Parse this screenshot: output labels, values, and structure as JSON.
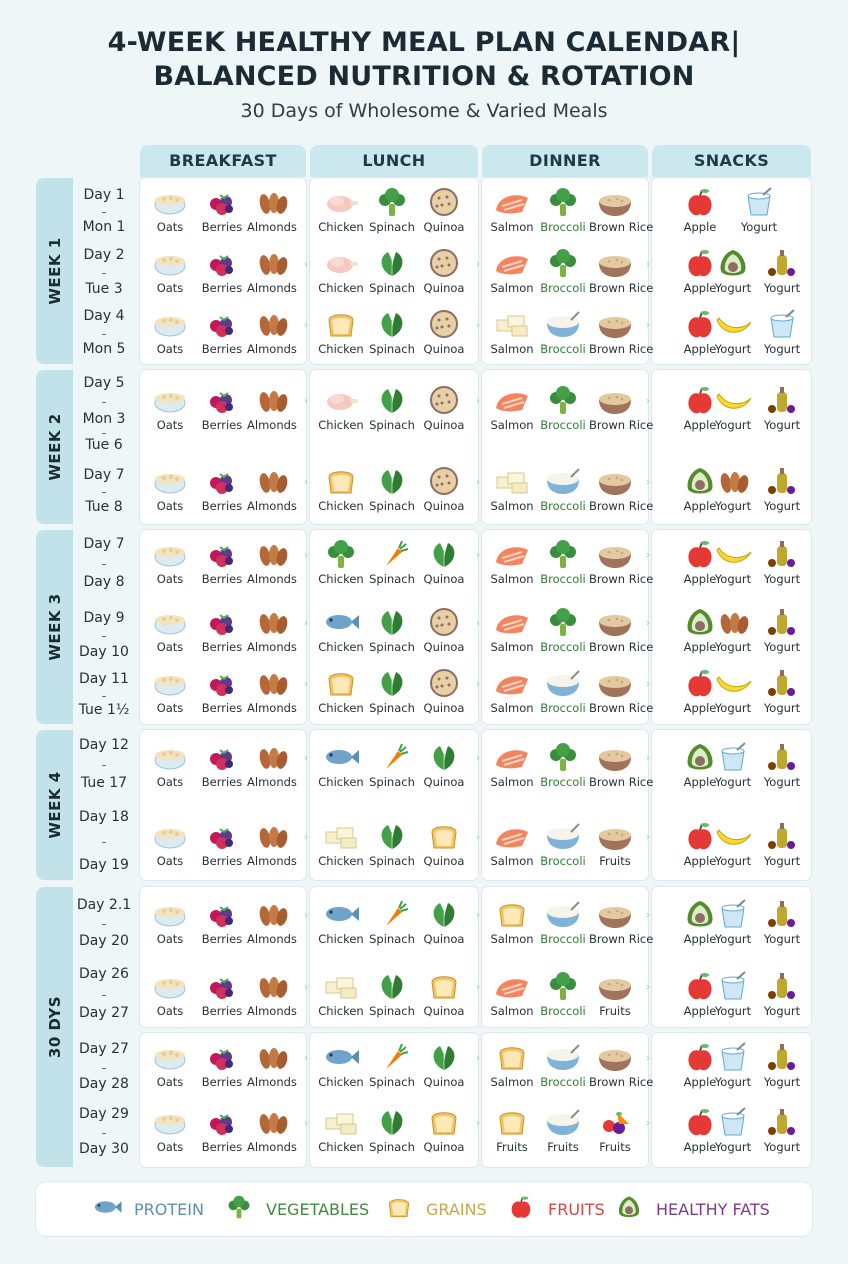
{
  "title_line1": "4-WEEK HEALTHY MEAL PLAN CALENDAR|",
  "title_line2": "BALANCED NUTRITION & ROTATION",
  "subtitle": "30 Days of Wholesome & Varied Meals",
  "columns": [
    "BREAKFAST",
    "LUNCH",
    "DINNER",
    "SNACKS"
  ],
  "weeks": [
    "WEEK 1",
    "WEEK 2",
    "WEEK 3",
    "WEEK 4",
    "30 DYS"
  ],
  "rows": [
    {
      "days": [
        "Day 1",
        "Mon 1"
      ],
      "breakfast": [
        [
          "oats",
          "Oats"
        ],
        [
          "berries",
          "Berries"
        ],
        [
          "almonds",
          "Almonds"
        ]
      ],
      "lunch": [
        [
          "chicken",
          "Chicken"
        ],
        [
          "broccoli",
          "Spinach"
        ],
        [
          "quinoa",
          "Quinoa"
        ]
      ],
      "dinner": [
        [
          "salmon",
          "Salmon"
        ],
        [
          "broccoli",
          "Broccoli"
        ],
        [
          "rice",
          "Brown Rice"
        ]
      ],
      "snacks": [
        [
          "apple",
          "Apple"
        ],
        [
          "yogurt",
          "Yogurt"
        ]
      ]
    },
    {
      "days": [
        "Day 2",
        "Tue 3"
      ],
      "breakfast": [
        [
          "oats",
          "Oats"
        ],
        [
          "berries",
          "Berries"
        ],
        [
          "almonds",
          "Almonds"
        ]
      ],
      "lunch": [
        [
          "chicken",
          "Chicken"
        ],
        [
          "spinach",
          "Spinach"
        ],
        [
          "quinoa",
          "Quinoa"
        ]
      ],
      "dinner": [
        [
          "salmon",
          "Salmon"
        ],
        [
          "broccoli",
          "Broccoli"
        ],
        [
          "rice",
          "Brown Rice"
        ]
      ],
      "snacks": [
        [
          "apple",
          "Apple"
        ],
        [
          "avocado",
          "Yogurt"
        ],
        [
          "oil",
          "Yogurt"
        ]
      ]
    },
    {
      "days": [
        "Day 4",
        "Mon 5"
      ],
      "breakfast": [
        [
          "oats",
          "Oats"
        ],
        [
          "berries",
          "Berries"
        ],
        [
          "almonds",
          "Almonds"
        ]
      ],
      "lunch": [
        [
          "bread",
          "Chicken"
        ],
        [
          "spinach",
          "Spinach"
        ],
        [
          "quinoa",
          "Quinoa"
        ]
      ],
      "dinner": [
        [
          "tofu",
          "Salmon"
        ],
        [
          "ricebowl",
          "Broccoli"
        ],
        [
          "rice",
          "Brown Rice"
        ]
      ],
      "snacks": [
        [
          "apple",
          "Apple"
        ],
        [
          "banana",
          "Yogurt"
        ],
        [
          "yogurt",
          "Yogurt"
        ]
      ]
    },
    {
      "days": [
        "Day 5",
        "Mon 3",
        "Tue 6"
      ],
      "breakfast": [
        [
          "oats",
          "Oats"
        ],
        [
          "berries",
          "Berries"
        ],
        [
          "almonds",
          "Almonds"
        ]
      ],
      "lunch": [
        [
          "chicken",
          "Chicken"
        ],
        [
          "spinach",
          "Spinach"
        ],
        [
          "quinoa",
          "Quinoa"
        ]
      ],
      "dinner": [
        [
          "salmon",
          "Salmon"
        ],
        [
          "broccoli",
          "Broccoli"
        ],
        [
          "rice",
          "Brown Rice"
        ]
      ],
      "snacks": [
        [
          "apple",
          "Apple"
        ],
        [
          "banana",
          "Yogurt"
        ],
        [
          "oil",
          "Yogurt"
        ]
      ]
    },
    {
      "days": [
        "Day 7",
        "Tue 8"
      ],
      "breakfast": [
        [
          "oats",
          "Oats"
        ],
        [
          "berries",
          "Berries"
        ],
        [
          "almonds",
          "Almonds"
        ]
      ],
      "lunch": [
        [
          "bread",
          "Chicken"
        ],
        [
          "spinach",
          "Spinach"
        ],
        [
          "quinoa",
          "Quinoa"
        ]
      ],
      "dinner": [
        [
          "tofu",
          "Salmon"
        ],
        [
          "ricebowl",
          "Broccoli"
        ],
        [
          "rice",
          "Brown Rice"
        ]
      ],
      "snacks": [
        [
          "avocado",
          "Apple"
        ],
        [
          "almonds",
          "Yogurt"
        ],
        [
          "oil",
          "Yogurt"
        ]
      ]
    },
    {
      "days": [
        "Day 7",
        "Day 8"
      ],
      "breakfast": [
        [
          "oats",
          "Oats"
        ],
        [
          "berries",
          "Berries"
        ],
        [
          "almonds",
          "Almonds"
        ]
      ],
      "lunch": [
        [
          "broccoli",
          "Chicken"
        ],
        [
          "carrot",
          "Spinach"
        ],
        [
          "spinach",
          "Quinoa"
        ]
      ],
      "dinner": [
        [
          "salmon",
          "Salmon"
        ],
        [
          "broccoli",
          "Broccoli"
        ],
        [
          "rice",
          "Brown Rice"
        ]
      ],
      "snacks": [
        [
          "apple",
          "Apple"
        ],
        [
          "banana",
          "Yogurt"
        ],
        [
          "oil",
          "Yogurt"
        ]
      ]
    },
    {
      "days": [
        "Day 9",
        "Day 10"
      ],
      "breakfast": [
        [
          "oats",
          "Oats"
        ],
        [
          "berries",
          "Berries"
        ],
        [
          "almonds",
          "Almonds"
        ]
      ],
      "lunch": [
        [
          "fish",
          "Chicken"
        ],
        [
          "spinach",
          "Spinach"
        ],
        [
          "quinoa",
          "Quinoa"
        ]
      ],
      "dinner": [
        [
          "salmon",
          "Salmon"
        ],
        [
          "broccoli",
          "Broccoli"
        ],
        [
          "rice",
          "Brown Rice"
        ]
      ],
      "snacks": [
        [
          "avocado",
          "Apple"
        ],
        [
          "almonds",
          "Yogurt"
        ],
        [
          "oil",
          "Yogurt"
        ]
      ]
    },
    {
      "days": [
        "Day 11",
        "Tue 1½"
      ],
      "breakfast": [
        [
          "oats",
          "Oats"
        ],
        [
          "berries",
          "Berries"
        ],
        [
          "almonds",
          "Almonds"
        ]
      ],
      "lunch": [
        [
          "bread",
          "Chicken"
        ],
        [
          "spinach",
          "Spinach"
        ],
        [
          "quinoa",
          "Quinoa"
        ]
      ],
      "dinner": [
        [
          "salmon",
          "Salmon"
        ],
        [
          "ricebowl",
          "Broccoli"
        ],
        [
          "rice",
          "Brown Rice"
        ]
      ],
      "snacks": [
        [
          "apple",
          "Apple"
        ],
        [
          "banana",
          "Yogurt"
        ],
        [
          "oil",
          "Yogurt"
        ]
      ]
    },
    {
      "days": [
        "Day 12",
        "Tue 17"
      ],
      "breakfast": [
        [
          "oats",
          "Oats"
        ],
        [
          "berries",
          "Berries"
        ],
        [
          "almonds",
          "Almonds"
        ]
      ],
      "lunch": [
        [
          "fish",
          "Chicken"
        ],
        [
          "carrot",
          "Spinach"
        ],
        [
          "spinach",
          "Quinoa"
        ]
      ],
      "dinner": [
        [
          "salmon",
          "Salmon"
        ],
        [
          "broccoli",
          "Broccoli"
        ],
        [
          "rice",
          "Brown Rice"
        ]
      ],
      "snacks": [
        [
          "avocado",
          "Apple"
        ],
        [
          "yogurt",
          "Yogurt"
        ],
        [
          "oil",
          "Yogurt"
        ]
      ]
    },
    {
      "days": [
        "Day 18",
        "Day 19"
      ],
      "breakfast": [
        [
          "oats",
          "Oats"
        ],
        [
          "berries",
          "Berries"
        ],
        [
          "almonds",
          "Almonds"
        ]
      ],
      "lunch": [
        [
          "tofu",
          "Chicken"
        ],
        [
          "spinach",
          "Spinach"
        ],
        [
          "bread",
          "Quinoa"
        ]
      ],
      "dinner": [
        [
          "salmon",
          "Salmon"
        ],
        [
          "ricebowl",
          "Broccoli"
        ],
        [
          "rice",
          "Fruits"
        ]
      ],
      "snacks": [
        [
          "apple",
          "Apple"
        ],
        [
          "banana",
          "Yogurt"
        ],
        [
          "oil",
          "Yogurt"
        ]
      ]
    },
    {
      "days": [
        "Day 2.1",
        "Day 20"
      ],
      "breakfast": [
        [
          "oats",
          "Oats"
        ],
        [
          "berries",
          "Berries"
        ],
        [
          "almonds",
          "Almonds"
        ]
      ],
      "lunch": [
        [
          "fish",
          "Chicken"
        ],
        [
          "carrot",
          "Spinach"
        ],
        [
          "spinach",
          "Quinoa"
        ]
      ],
      "dinner": [
        [
          "bread",
          "Salmon"
        ],
        [
          "ricebowl",
          "Broccoli"
        ],
        [
          "rice",
          "Brown Rice"
        ]
      ],
      "snacks": [
        [
          "avocado",
          "Apple"
        ],
        [
          "yogurt",
          "Yogurt"
        ],
        [
          "oil",
          "Yogurt"
        ]
      ]
    },
    {
      "days": [
        "Day 26",
        "Day 27"
      ],
      "breakfast": [
        [
          "oats",
          "Oats"
        ],
        [
          "berries",
          "Berries"
        ],
        [
          "almonds",
          "Almonds"
        ]
      ],
      "lunch": [
        [
          "tofu",
          "Chicken"
        ],
        [
          "spinach",
          "Spinach"
        ],
        [
          "bread",
          "Quinoa"
        ]
      ],
      "dinner": [
        [
          "salmon",
          "Salmon"
        ],
        [
          "broccoli",
          "Broccoli"
        ],
        [
          "rice",
          "Fruits"
        ]
      ],
      "snacks": [
        [
          "apple",
          "Apple"
        ],
        [
          "yogurt",
          "Yogurt"
        ],
        [
          "oil",
          "Yogurt"
        ]
      ]
    },
    {
      "days": [
        "Day 27",
        "Day 28"
      ],
      "breakfast": [
        [
          "oats",
          "Oats"
        ],
        [
          "berries",
          "Berries"
        ],
        [
          "almonds",
          "Almonds"
        ]
      ],
      "lunch": [
        [
          "fish",
          "Chicken"
        ],
        [
          "carrot",
          "Spinach"
        ],
        [
          "spinach",
          "Quinoa"
        ]
      ],
      "dinner": [
        [
          "bread",
          "Salmon"
        ],
        [
          "ricebowl",
          "Broccoli"
        ],
        [
          "rice",
          "Brown Rice"
        ]
      ],
      "snacks": [
        [
          "apple",
          "Apple"
        ],
        [
          "yogurt",
          "Yogurt"
        ],
        [
          "oil",
          "Yogurt"
        ]
      ]
    },
    {
      "days": [
        "Day 29",
        "Day 30"
      ],
      "breakfast": [
        [
          "oats",
          "Oats"
        ],
        [
          "berries",
          "Berries"
        ],
        [
          "almonds",
          "Almonds"
        ]
      ],
      "lunch": [
        [
          "tofu",
          "Chicken"
        ],
        [
          "spinach",
          "Spinach"
        ],
        [
          "bread",
          "Quinoa"
        ]
      ],
      "dinner": [
        [
          "bread",
          "Fruits"
        ],
        [
          "ricebowl",
          "Fruits"
        ],
        [
          "mixed",
          "Fruits"
        ]
      ],
      "snacks": [
        [
          "apple",
          "Apple"
        ],
        [
          "yogurt",
          "Yogurt"
        ],
        [
          "oil",
          "Yogurt"
        ]
      ]
    }
  ],
  "legend": [
    {
      "icon": "fish",
      "label": "PROTEIN",
      "color": "#5b8fb3"
    },
    {
      "icon": "broccoli",
      "label": "VEGETABLES",
      "color": "#3f8a3c"
    },
    {
      "icon": "bread",
      "label": "GRAINS",
      "color": "#c9a84c"
    },
    {
      "icon": "apple",
      "label": "FRUITS",
      "color": "#d0493f"
    },
    {
      "icon": "avocado",
      "label": "HEALTHY FATS",
      "color": "#7a3c8c"
    }
  ]
}
